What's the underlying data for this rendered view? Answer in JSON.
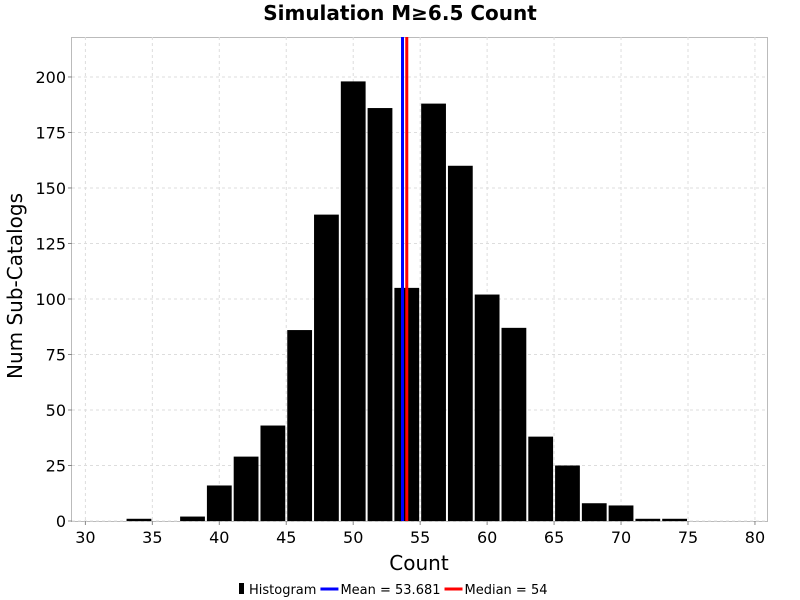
{
  "chart_data": {
    "type": "bar",
    "title": "Simulation M≥6.5 Count",
    "xlabel": "Count",
    "ylabel": "Num Sub-Catalogs",
    "xlim": [
      29,
      80.9
    ],
    "ylim": [
      0,
      218
    ],
    "xticks": [
      30,
      35,
      40,
      45,
      50,
      55,
      60,
      65,
      70,
      75,
      80
    ],
    "yticks": [
      0,
      25,
      50,
      75,
      100,
      125,
      150,
      175,
      200
    ],
    "grid": true,
    "bin_width": 2,
    "bins": [
      {
        "x": 34,
        "y": 1
      },
      {
        "x": 38,
        "y": 2
      },
      {
        "x": 40,
        "y": 16
      },
      {
        "x": 42,
        "y": 29
      },
      {
        "x": 44,
        "y": 43
      },
      {
        "x": 46,
        "y": 86
      },
      {
        "x": 48,
        "y": 138
      },
      {
        "x": 50,
        "y": 198
      },
      {
        "x": 52,
        "y": 186
      },
      {
        "x": 54,
        "y": 105
      },
      {
        "x": 56,
        "y": 188
      },
      {
        "x": 58,
        "y": 160
      },
      {
        "x": 60,
        "y": 102
      },
      {
        "x": 62,
        "y": 87
      },
      {
        "x": 64,
        "y": 38
      },
      {
        "x": 66,
        "y": 25
      },
      {
        "x": 68,
        "y": 8
      },
      {
        "x": 70,
        "y": 7
      },
      {
        "x": 72,
        "y": 1
      },
      {
        "x": 74,
        "y": 1
      }
    ],
    "bar_color": "#000000",
    "reference_lines": [
      {
        "name": "Mean",
        "value": 53.681,
        "color": "#0000ff"
      },
      {
        "name": "Median",
        "value": 54,
        "color": "#ff0000"
      }
    ],
    "legend": {
      "placement": "bottom",
      "entries": [
        {
          "label": "Histogram",
          "color": "#000000"
        },
        {
          "label": "Mean = 53.681",
          "color": "#0000ff"
        },
        {
          "label": "Median = 54",
          "color": "#ff0000"
        }
      ]
    }
  }
}
